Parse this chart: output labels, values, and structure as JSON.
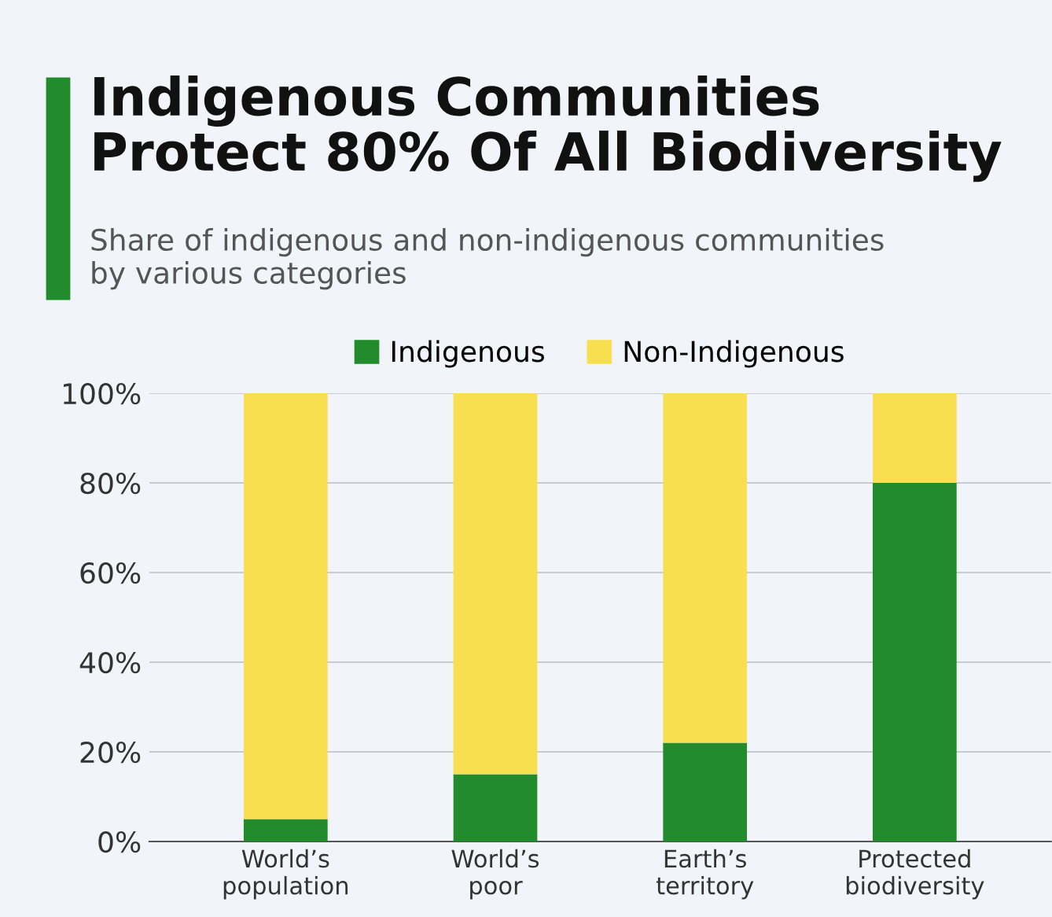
{
  "chart_data": {
    "type": "bar",
    "title": "Indigenous Communities\nProtect 80% Of All Biodiversity",
    "subtitle": "Share of indigenous and non-indigenous communities\nby various categories",
    "categories": [
      "World’s\npopulation",
      "World’s\npoor",
      "Earth’s\nterritory",
      "Protected\nbiodiversity"
    ],
    "series": [
      {
        "name": "Indigenous",
        "color": "#228b2b",
        "values": [
          5,
          15,
          22,
          80
        ]
      },
      {
        "name": "Non-Indigenous",
        "color": "#f7df4f",
        "values": [
          95,
          85,
          78,
          20
        ]
      }
    ],
    "stacked": true,
    "ylim": [
      0,
      100
    ],
    "yticks": [
      {
        "value": 0,
        "label": "0%"
      },
      {
        "value": 20,
        "label": "20%"
      },
      {
        "value": 40,
        "label": "40%"
      },
      {
        "value": 60,
        "label": "60%"
      },
      {
        "value": 80,
        "label": "80%"
      },
      {
        "value": 100,
        "label": "100%"
      }
    ],
    "grid": "y",
    "legend": "top"
  }
}
